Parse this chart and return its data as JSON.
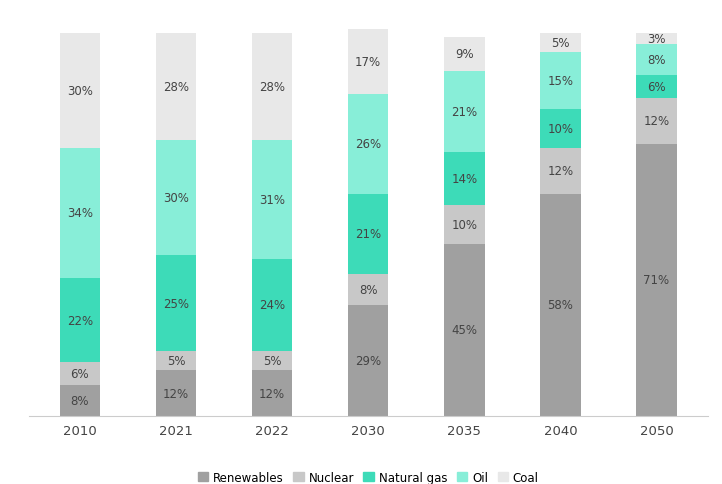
{
  "categories": [
    "2010",
    "2021",
    "2022",
    "2030",
    "2035",
    "2040",
    "2050"
  ],
  "series": {
    "Renewables": [
      8,
      12,
      12,
      29,
      45,
      58,
      71
    ],
    "Nuclear": [
      6,
      5,
      5,
      8,
      10,
      12,
      12
    ],
    "Natural gas": [
      22,
      25,
      24,
      21,
      14,
      10,
      6
    ],
    "Oil": [
      34,
      30,
      31,
      26,
      21,
      15,
      8
    ],
    "Coal": [
      30,
      28,
      28,
      17,
      9,
      5,
      3
    ]
  },
  "colors": {
    "Renewables": "#a0a0a0",
    "Nuclear": "#c8c8c8",
    "Natural gas": "#3ddbb8",
    "Oil": "#88eed8",
    "Coal": "#e8e8e8"
  },
  "bar_width": 0.42,
  "figsize": [
    7.22,
    4.85
  ],
  "dpi": 100,
  "background_color": "#ffffff",
  "legend_order": [
    "Renewables",
    "Nuclear",
    "Natural gas",
    "Oil",
    "Coal"
  ],
  "label_fontsize": 8.5,
  "legend_fontsize": 8.5,
  "tick_fontsize": 9.5
}
